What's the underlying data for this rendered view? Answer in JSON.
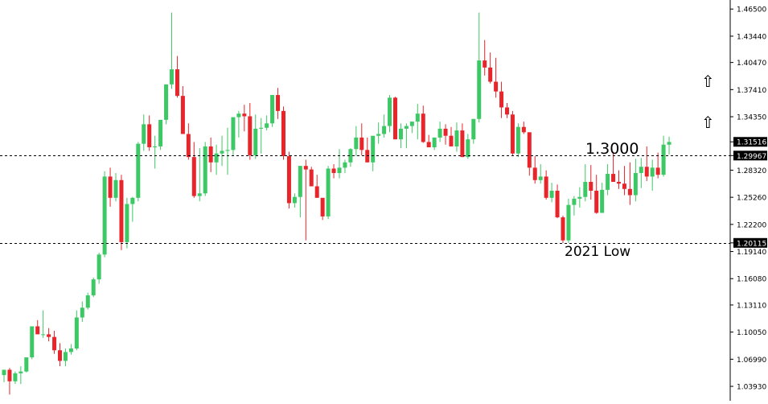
{
  "chart_data": {
    "type": "candlestick",
    "title": "",
    "xlabel": "",
    "ylabel": "",
    "ylim": [
      1.023,
      1.4752
    ],
    "y_ticks": [
      "1.46500",
      "1.43440",
      "1.40470",
      "1.37410",
      "1.34350",
      "1.31516",
      "1.29967",
      "1.28320",
      "1.25260",
      "1.22200",
      "1.20115",
      "1.19140",
      "1.16080",
      "1.13110",
      "1.10050",
      "1.06990",
      "1.03930"
    ],
    "current_price": "1.31516",
    "current_price_value": 1.31516,
    "horizontal_levels": [
      {
        "value": 1.29967,
        "label": "1.29967"
      },
      {
        "value": 1.20115,
        "label": "1.20115"
      }
    ],
    "annotations": [
      {
        "text": "1.3000",
        "value": 1.3
      },
      {
        "text": "2021 Low",
        "value": 1.2011
      }
    ],
    "arrow_icons": [
      {
        "name": "up-arrow-icon",
        "glyph": "⇧",
        "value": 1.377
      },
      {
        "name": "up-arrow-icon",
        "glyph": "⇧",
        "value": 1.34
      }
    ],
    "colors": {
      "bullish": "#3cc864",
      "bearish": "#e8252b",
      "background": "#ffffff",
      "axis_label_box": "#000000",
      "axis_label_text": "#ffffff",
      "dotted_level": "#000000"
    },
    "series": [
      {
        "values": [
          [
            1.052,
            1.058,
            1.044,
            1.058
          ],
          [
            1.058,
            1.06,
            1.03,
            1.045
          ],
          [
            1.045,
            1.056,
            1.042,
            1.054
          ],
          [
            1.054,
            1.062,
            1.042,
            1.056
          ],
          [
            1.056,
            1.07,
            1.055,
            1.072
          ],
          [
            1.072,
            1.098,
            1.07,
            1.107
          ],
          [
            1.107,
            1.114,
            1.102,
            1.098
          ],
          [
            1.098,
            1.125,
            1.094,
            1.098
          ],
          [
            1.098,
            1.105,
            1.09,
            1.095
          ],
          [
            1.095,
            1.102,
            1.076,
            1.08
          ],
          [
            1.08,
            1.088,
            1.062,
            1.068
          ],
          [
            1.068,
            1.082,
            1.062,
            1.078
          ],
          [
            1.078,
            1.087,
            1.075,
            1.082
          ],
          [
            1.082,
            1.125,
            1.08,
            1.117
          ],
          [
            1.117,
            1.135,
            1.112,
            1.128
          ],
          [
            1.128,
            1.145,
            1.126,
            1.142
          ],
          [
            1.142,
            1.162,
            1.14,
            1.16
          ],
          [
            1.16,
            1.19,
            1.155,
            1.188
          ],
          [
            1.188,
            1.282,
            1.185,
            1.276
          ],
          [
            1.276,
            1.286,
            1.242,
            1.252
          ],
          [
            1.252,
            1.28,
            1.248,
            1.272
          ],
          [
            1.272,
            1.278,
            1.193,
            1.202
          ],
          [
            1.202,
            1.252,
            1.195,
            1.245
          ],
          [
            1.245,
            1.253,
            1.225,
            1.252
          ],
          [
            1.252,
            1.315,
            1.248,
            1.313
          ],
          [
            1.313,
            1.346,
            1.305,
            1.335
          ],
          [
            1.335,
            1.345,
            1.305,
            1.309
          ],
          [
            1.309,
            1.322,
            1.285,
            1.31
          ],
          [
            1.31,
            1.335,
            1.306,
            1.34
          ],
          [
            1.34,
            1.378,
            1.335,
            1.38
          ],
          [
            1.38,
            1.461,
            1.375,
            1.397
          ],
          [
            1.397,
            1.412,
            1.365,
            1.367
          ],
          [
            1.367,
            1.378,
            1.332,
            1.324
          ],
          [
            1.324,
            1.336,
            1.295,
            1.298
          ],
          [
            1.298,
            1.315,
            1.252,
            1.254
          ],
          [
            1.254,
            1.308,
            1.248,
            1.257
          ],
          [
            1.257,
            1.315,
            1.254,
            1.31
          ],
          [
            1.31,
            1.32,
            1.281,
            1.292
          ],
          [
            1.292,
            1.312,
            1.278,
            1.302
          ],
          [
            1.302,
            1.322,
            1.288,
            1.305
          ],
          [
            1.305,
            1.331,
            1.278,
            1.306
          ],
          [
            1.306,
            1.341,
            1.3,
            1.343
          ],
          [
            1.343,
            1.35,
            1.32,
            1.347
          ],
          [
            1.347,
            1.357,
            1.327,
            1.344
          ],
          [
            1.344,
            1.359,
            1.295,
            1.3
          ],
          [
            1.3,
            1.346,
            1.296,
            1.33
          ],
          [
            1.33,
            1.342,
            1.302,
            1.331
          ],
          [
            1.331,
            1.345,
            1.328,
            1.336
          ],
          [
            1.336,
            1.356,
            1.332,
            1.368
          ],
          [
            1.368,
            1.376,
            1.341,
            1.35
          ],
          [
            1.35,
            1.355,
            1.295,
            1.299
          ],
          [
            1.299,
            1.304,
            1.24,
            1.246
          ],
          [
            1.246,
            1.257,
            1.241,
            1.253
          ],
          [
            1.253,
            1.288,
            1.23,
            1.288
          ],
          [
            1.288,
            1.295,
            1.204,
            1.284
          ],
          [
            1.284,
            1.287,
            1.267,
            1.265
          ],
          [
            1.265,
            1.278,
            1.252,
            1.252
          ],
          [
            1.252,
            1.246,
            1.227,
            1.231
          ],
          [
            1.231,
            1.288,
            1.228,
            1.285
          ],
          [
            1.285,
            1.29,
            1.274,
            1.28
          ],
          [
            1.28,
            1.307,
            1.274,
            1.286
          ],
          [
            1.286,
            1.295,
            1.28,
            1.292
          ],
          [
            1.292,
            1.308,
            1.287,
            1.307
          ],
          [
            1.307,
            1.333,
            1.299,
            1.32
          ],
          [
            1.32,
            1.336,
            1.3,
            1.306
          ],
          [
            1.306,
            1.32,
            1.292,
            1.292
          ],
          [
            1.292,
            1.318,
            1.282,
            1.322
          ],
          [
            1.322,
            1.337,
            1.313,
            1.324
          ],
          [
            1.324,
            1.346,
            1.32,
            1.333
          ],
          [
            1.333,
            1.368,
            1.326,
            1.365
          ],
          [
            1.365,
            1.366,
            1.318,
            1.318
          ],
          [
            1.318,
            1.336,
            1.308,
            1.33
          ],
          [
            1.33,
            1.336,
            1.308,
            1.333
          ],
          [
            1.333,
            1.336,
            1.325,
            1.338
          ],
          [
            1.338,
            1.358,
            1.318,
            1.347
          ],
          [
            1.347,
            1.356,
            1.314,
            1.315
          ],
          [
            1.315,
            1.323,
            1.31,
            1.309
          ],
          [
            1.309,
            1.32,
            1.306,
            1.32
          ],
          [
            1.32,
            1.338,
            1.315,
            1.33
          ],
          [
            1.33,
            1.335,
            1.312,
            1.322
          ],
          [
            1.322,
            1.332,
            1.311,
            1.31
          ],
          [
            1.31,
            1.337,
            1.304,
            1.328
          ],
          [
            1.328,
            1.336,
            1.298,
            1.298
          ],
          [
            1.298,
            1.324,
            1.296,
            1.318
          ],
          [
            1.318,
            1.341,
            1.313,
            1.341
          ],
          [
            1.341,
            1.461,
            1.337,
            1.407
          ],
          [
            1.407,
            1.43,
            1.39,
            1.399
          ],
          [
            1.399,
            1.416,
            1.381,
            1.383
          ],
          [
            1.383,
            1.41,
            1.365,
            1.372
          ],
          [
            1.372,
            1.383,
            1.342,
            1.354
          ],
          [
            1.354,
            1.359,
            1.342,
            1.346
          ],
          [
            1.346,
            1.35,
            1.3,
            1.302
          ],
          [
            1.302,
            1.336,
            1.298,
            1.332
          ],
          [
            1.332,
            1.338,
            1.324,
            1.326
          ],
          [
            1.326,
            1.324,
            1.277,
            1.286
          ],
          [
            1.286,
            1.299,
            1.268,
            1.272
          ],
          [
            1.272,
            1.29,
            1.268,
            1.276
          ],
          [
            1.276,
            1.283,
            1.25,
            1.252
          ],
          [
            1.252,
            1.269,
            1.247,
            1.26
          ],
          [
            1.26,
            1.267,
            1.229,
            1.23
          ],
          [
            1.23,
            1.232,
            1.201,
            1.204
          ],
          [
            1.204,
            1.251,
            1.201,
            1.244
          ],
          [
            1.244,
            1.254,
            1.232,
            1.251
          ],
          [
            1.251,
            1.264,
            1.241,
            1.253
          ],
          [
            1.253,
            1.29,
            1.248,
            1.27
          ],
          [
            1.27,
            1.289,
            1.25,
            1.26
          ],
          [
            1.26,
            1.278,
            1.234,
            1.235
          ],
          [
            1.235,
            1.269,
            1.237,
            1.261
          ],
          [
            1.261,
            1.29,
            1.255,
            1.279
          ],
          [
            1.279,
            1.304,
            1.273,
            1.27
          ],
          [
            1.27,
            1.283,
            1.262,
            1.268
          ],
          [
            1.268,
            1.288,
            1.255,
            1.262
          ],
          [
            1.262,
            1.292,
            1.244,
            1.255
          ],
          [
            1.255,
            1.296,
            1.248,
            1.28
          ],
          [
            1.28,
            1.297,
            1.263,
            1.287
          ],
          [
            1.287,
            1.31,
            1.271,
            1.276
          ],
          [
            1.276,
            1.295,
            1.26,
            1.286
          ],
          [
            1.286,
            1.303,
            1.274,
            1.278
          ],
          [
            1.278,
            1.322,
            1.276,
            1.312
          ],
          [
            1.312,
            1.321,
            1.301,
            1.315
          ]
        ]
      }
    ]
  }
}
